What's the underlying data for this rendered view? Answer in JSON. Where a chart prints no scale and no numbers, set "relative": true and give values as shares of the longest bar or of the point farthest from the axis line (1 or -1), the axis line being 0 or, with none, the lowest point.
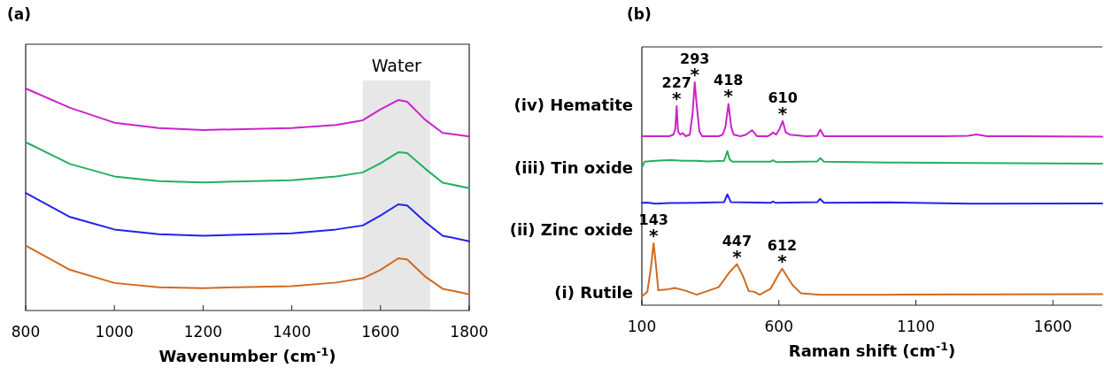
{
  "chart_data": [
    {
      "type": "line",
      "title": "(a)",
      "xlabel": "Wavenumber (cm$^{-1}$)",
      "relative": true,
      "xlim": [
        800,
        1800
      ],
      "xticks": [
        800,
        1000,
        1200,
        1400,
        1600,
        1800
      ],
      "tick_labels": "x",
      "grid": false,
      "x": [
        800,
        900,
        1000,
        1100,
        1200,
        1400,
        1500,
        1560,
        1600,
        1640,
        1660,
        1700,
        1740,
        1800
      ],
      "bands": [
        {
          "axis": "x",
          "from": 1560,
          "to": 1712,
          "label": "Water",
          "color": "#e7e7e7"
        }
      ],
      "series": [
        {
          "color": "#cc22cc",
          "values": [
            1.0,
            0.913,
            0.846,
            0.822,
            0.813,
            0.822,
            0.836,
            0.857,
            0.906,
            0.948,
            0.94,
            0.86,
            0.8,
            0.784
          ]
        },
        {
          "color": "#22b060",
          "values": [
            0.758,
            0.66,
            0.604,
            0.583,
            0.577,
            0.587,
            0.604,
            0.622,
            0.663,
            0.713,
            0.709,
            0.64,
            0.576,
            0.551
          ]
        },
        {
          "color": "#2222ee",
          "values": [
            0.529,
            0.421,
            0.365,
            0.344,
            0.337,
            0.348,
            0.365,
            0.383,
            0.428,
            0.478,
            0.473,
            0.4,
            0.337,
            0.312
          ]
        },
        {
          "color": "#d2691e",
          "values": [
            0.292,
            0.183,
            0.124,
            0.105,
            0.101,
            0.11,
            0.126,
            0.145,
            0.183,
            0.235,
            0.23,
            0.154,
            0.098,
            0.073
          ]
        }
      ]
    },
    {
      "type": "line",
      "title": "(b)",
      "xlabel": "Raman shift (cm$^{-1}$)",
      "relative": true,
      "xlim": [
        100,
        1780
      ],
      "xticks": [
        100,
        600,
        1100,
        1600
      ],
      "tick_labels": "x",
      "grid": false,
      "series": [
        {
          "name": "(iv) Hematite",
          "color": "#cc22cc",
          "x": [
            100,
            200,
            215,
            222,
            227,
            232,
            240,
            249,
            260,
            275,
            285,
            293,
            300,
            310,
            320,
            380,
            395,
            405,
            416,
            426,
            435,
            460,
            480,
            502,
            520,
            560,
            570,
            578,
            590,
            602,
            614,
            625,
            640,
            700,
            740,
            751,
            765,
            900,
            1200,
            1290,
            1321,
            1360,
            1500,
            1780
          ],
          "values": [
            0.758,
            0.758,
            0.765,
            0.79,
            0.893,
            0.78,
            0.765,
            0.772,
            0.758,
            0.765,
            0.86,
            1.0,
            0.9,
            0.78,
            0.758,
            0.758,
            0.765,
            0.8,
            0.903,
            0.8,
            0.765,
            0.758,
            0.765,
            0.785,
            0.758,
            0.758,
            0.765,
            0.775,
            0.765,
            0.79,
            0.826,
            0.775,
            0.765,
            0.758,
            0.76,
            0.788,
            0.758,
            0.758,
            0.758,
            0.76,
            0.766,
            0.758,
            0.758,
            0.756
          ]
        },
        {
          "name": "(iii) Tin oxide",
          "color": "#22b060",
          "x": [
            100,
            110,
            150,
            200,
            250,
            300,
            340,
            400,
            412,
            420,
            430,
            570,
            578,
            590,
            740,
            751,
            765,
            1000,
            1300,
            1780
          ],
          "values": [
            0.617,
            0.644,
            0.648,
            0.651,
            0.648,
            0.648,
            0.645,
            0.648,
            0.691,
            0.655,
            0.644,
            0.644,
            0.65,
            0.642,
            0.645,
            0.66,
            0.644,
            0.64,
            0.638,
            0.635
          ]
        },
        {
          "name": "(ii) Zinc oxide",
          "color": "#2222ee",
          "x": [
            100,
            120,
            150,
            200,
            300,
            400,
            406,
            412,
            425,
            570,
            578,
            590,
            740,
            750,
            765,
            1000,
            1300,
            1780
          ],
          "values": [
            0.459,
            0.46,
            0.455,
            0.458,
            0.459,
            0.462,
            0.48,
            0.497,
            0.462,
            0.459,
            0.465,
            0.459,
            0.462,
            0.477,
            0.459,
            0.461,
            0.455,
            0.456
          ]
        },
        {
          "name": "(i) Rutile",
          "color": "#d2691e",
          "x": [
            100,
            120,
            133,
            143,
            153,
            160,
            190,
            220,
            260,
            300,
            380,
            400,
            420,
            447,
            470,
            490,
            510,
            530,
            570,
            600,
            612,
            630,
            650,
            680,
            750,
            1000,
            1780
          ],
          "values": [
            0.04,
            0.06,
            0.168,
            0.278,
            0.16,
            0.067,
            0.07,
            0.077,
            0.065,
            0.047,
            0.081,
            0.114,
            0.148,
            0.184,
            0.128,
            0.063,
            0.06,
            0.047,
            0.074,
            0.141,
            0.164,
            0.128,
            0.09,
            0.054,
            0.047,
            0.047,
            0.05
          ]
        }
      ],
      "annotations": [
        {
          "text": "227\n*",
          "x": 227,
          "y": 0.893
        },
        {
          "text": "293\n*",
          "x": 293,
          "y": 1.0
        },
        {
          "text": "418\n*",
          "x": 416,
          "y": 0.903
        },
        {
          "text": "610\n*",
          "x": 614,
          "y": 0.826
        },
        {
          "text": "143\n*",
          "x": 143,
          "y": 0.278
        },
        {
          "text": "447\n*",
          "x": 447,
          "y": 0.184
        },
        {
          "text": "612\n*",
          "x": 612,
          "y": 0.164
        }
      ]
    }
  ]
}
